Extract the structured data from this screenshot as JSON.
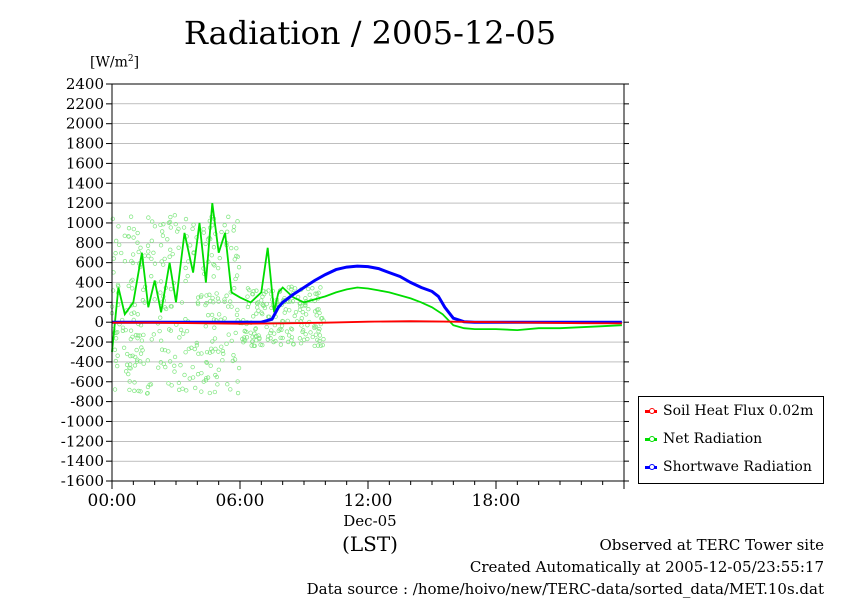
{
  "chart_data": {
    "type": "line",
    "title": "Radiation / 2005-12-05",
    "ylabel": "[W/m²]",
    "ylabel_base": "[W/m",
    "ylabel_sup": "2",
    "ylabel_close": "]",
    "xlabel": "(LST)",
    "date_label": "Dec-05",
    "ylim": [
      -1600,
      2400
    ],
    "xlim_hours": [
      0,
      24
    ],
    "yticks": [
      -1600,
      -1400,
      -1200,
      -1000,
      -800,
      -600,
      -400,
      -200,
      0,
      200,
      400,
      600,
      800,
      1000,
      1200,
      1400,
      1600,
      1800,
      2000,
      2200,
      2400
    ],
    "xticks": [
      {
        "hour": 0,
        "label": "00:00"
      },
      {
        "hour": 6,
        "label": "06:00"
      },
      {
        "hour": 12,
        "label": "12:00"
      },
      {
        "hour": 18,
        "label": "18:00"
      }
    ],
    "grid": true,
    "legend_position": "right-bottom",
    "series": [
      {
        "name": "Soil Heat Flux 0.02m",
        "color": "#ff0000",
        "x": [
          0,
          2,
          4,
          6,
          8,
          10,
          12,
          14,
          16,
          18,
          20,
          22,
          23.9
        ],
        "y": [
          -5,
          -5,
          -10,
          -15,
          -12,
          -5,
          5,
          10,
          5,
          0,
          -5,
          -10,
          -12
        ]
      },
      {
        "name": "Net Radiation",
        "color": "#00dd00",
        "x": [
          0,
          0.3,
          0.6,
          1.0,
          1.4,
          1.7,
          2.0,
          2.3,
          2.7,
          3.0,
          3.4,
          3.8,
          4.1,
          4.4,
          4.7,
          5.0,
          5.3,
          5.6,
          6.0,
          6.5,
          7.0,
          7.3,
          7.6,
          7.8,
          8.0,
          8.5,
          9.0,
          9.5,
          10.0,
          10.5,
          11.0,
          11.5,
          12.0,
          12.5,
          13.0,
          13.5,
          14.0,
          14.5,
          15.0,
          15.5,
          16.0,
          16.5,
          17.0,
          18.0,
          19.0,
          20.0,
          21.0,
          22.0,
          23.0,
          23.9
        ],
        "y": [
          -300,
          350,
          80,
          200,
          700,
          150,
          420,
          100,
          600,
          200,
          900,
          500,
          1000,
          400,
          1200,
          700,
          900,
          300,
          250,
          200,
          300,
          750,
          100,
          300,
          350,
          250,
          200,
          230,
          260,
          300,
          330,
          350,
          340,
          320,
          300,
          270,
          240,
          200,
          150,
          80,
          -30,
          -60,
          -70,
          -70,
          -80,
          -60,
          -60,
          -50,
          -40,
          -30
        ]
      },
      {
        "name": "Shortwave Radiation",
        "color": "#0000ff",
        "x": [
          0,
          2,
          4,
          6,
          7.0,
          7.5,
          7.8,
          8.0,
          8.5,
          9.0,
          9.5,
          10.0,
          10.5,
          11.0,
          11.5,
          12.0,
          12.5,
          13.0,
          13.5,
          14.0,
          14.5,
          15.0,
          15.3,
          15.6,
          16.0,
          16.5,
          17.0,
          18.0,
          20.0,
          22.0,
          23.9
        ],
        "y": [
          0,
          0,
          0,
          0,
          0,
          30,
          150,
          200,
          280,
          350,
          420,
          480,
          530,
          555,
          565,
          560,
          540,
          500,
          460,
          400,
          350,
          310,
          260,
          150,
          40,
          5,
          0,
          0,
          0,
          0,
          0
        ]
      }
    ]
  },
  "footer": {
    "line1": "Observed at TERC Tower site",
    "line2": "Created Automatically at 2005-12-05/23:55:17",
    "line3": "Data source : /home/hoivo/new/TERC-data/sorted_data/MET.10s.dat"
  }
}
